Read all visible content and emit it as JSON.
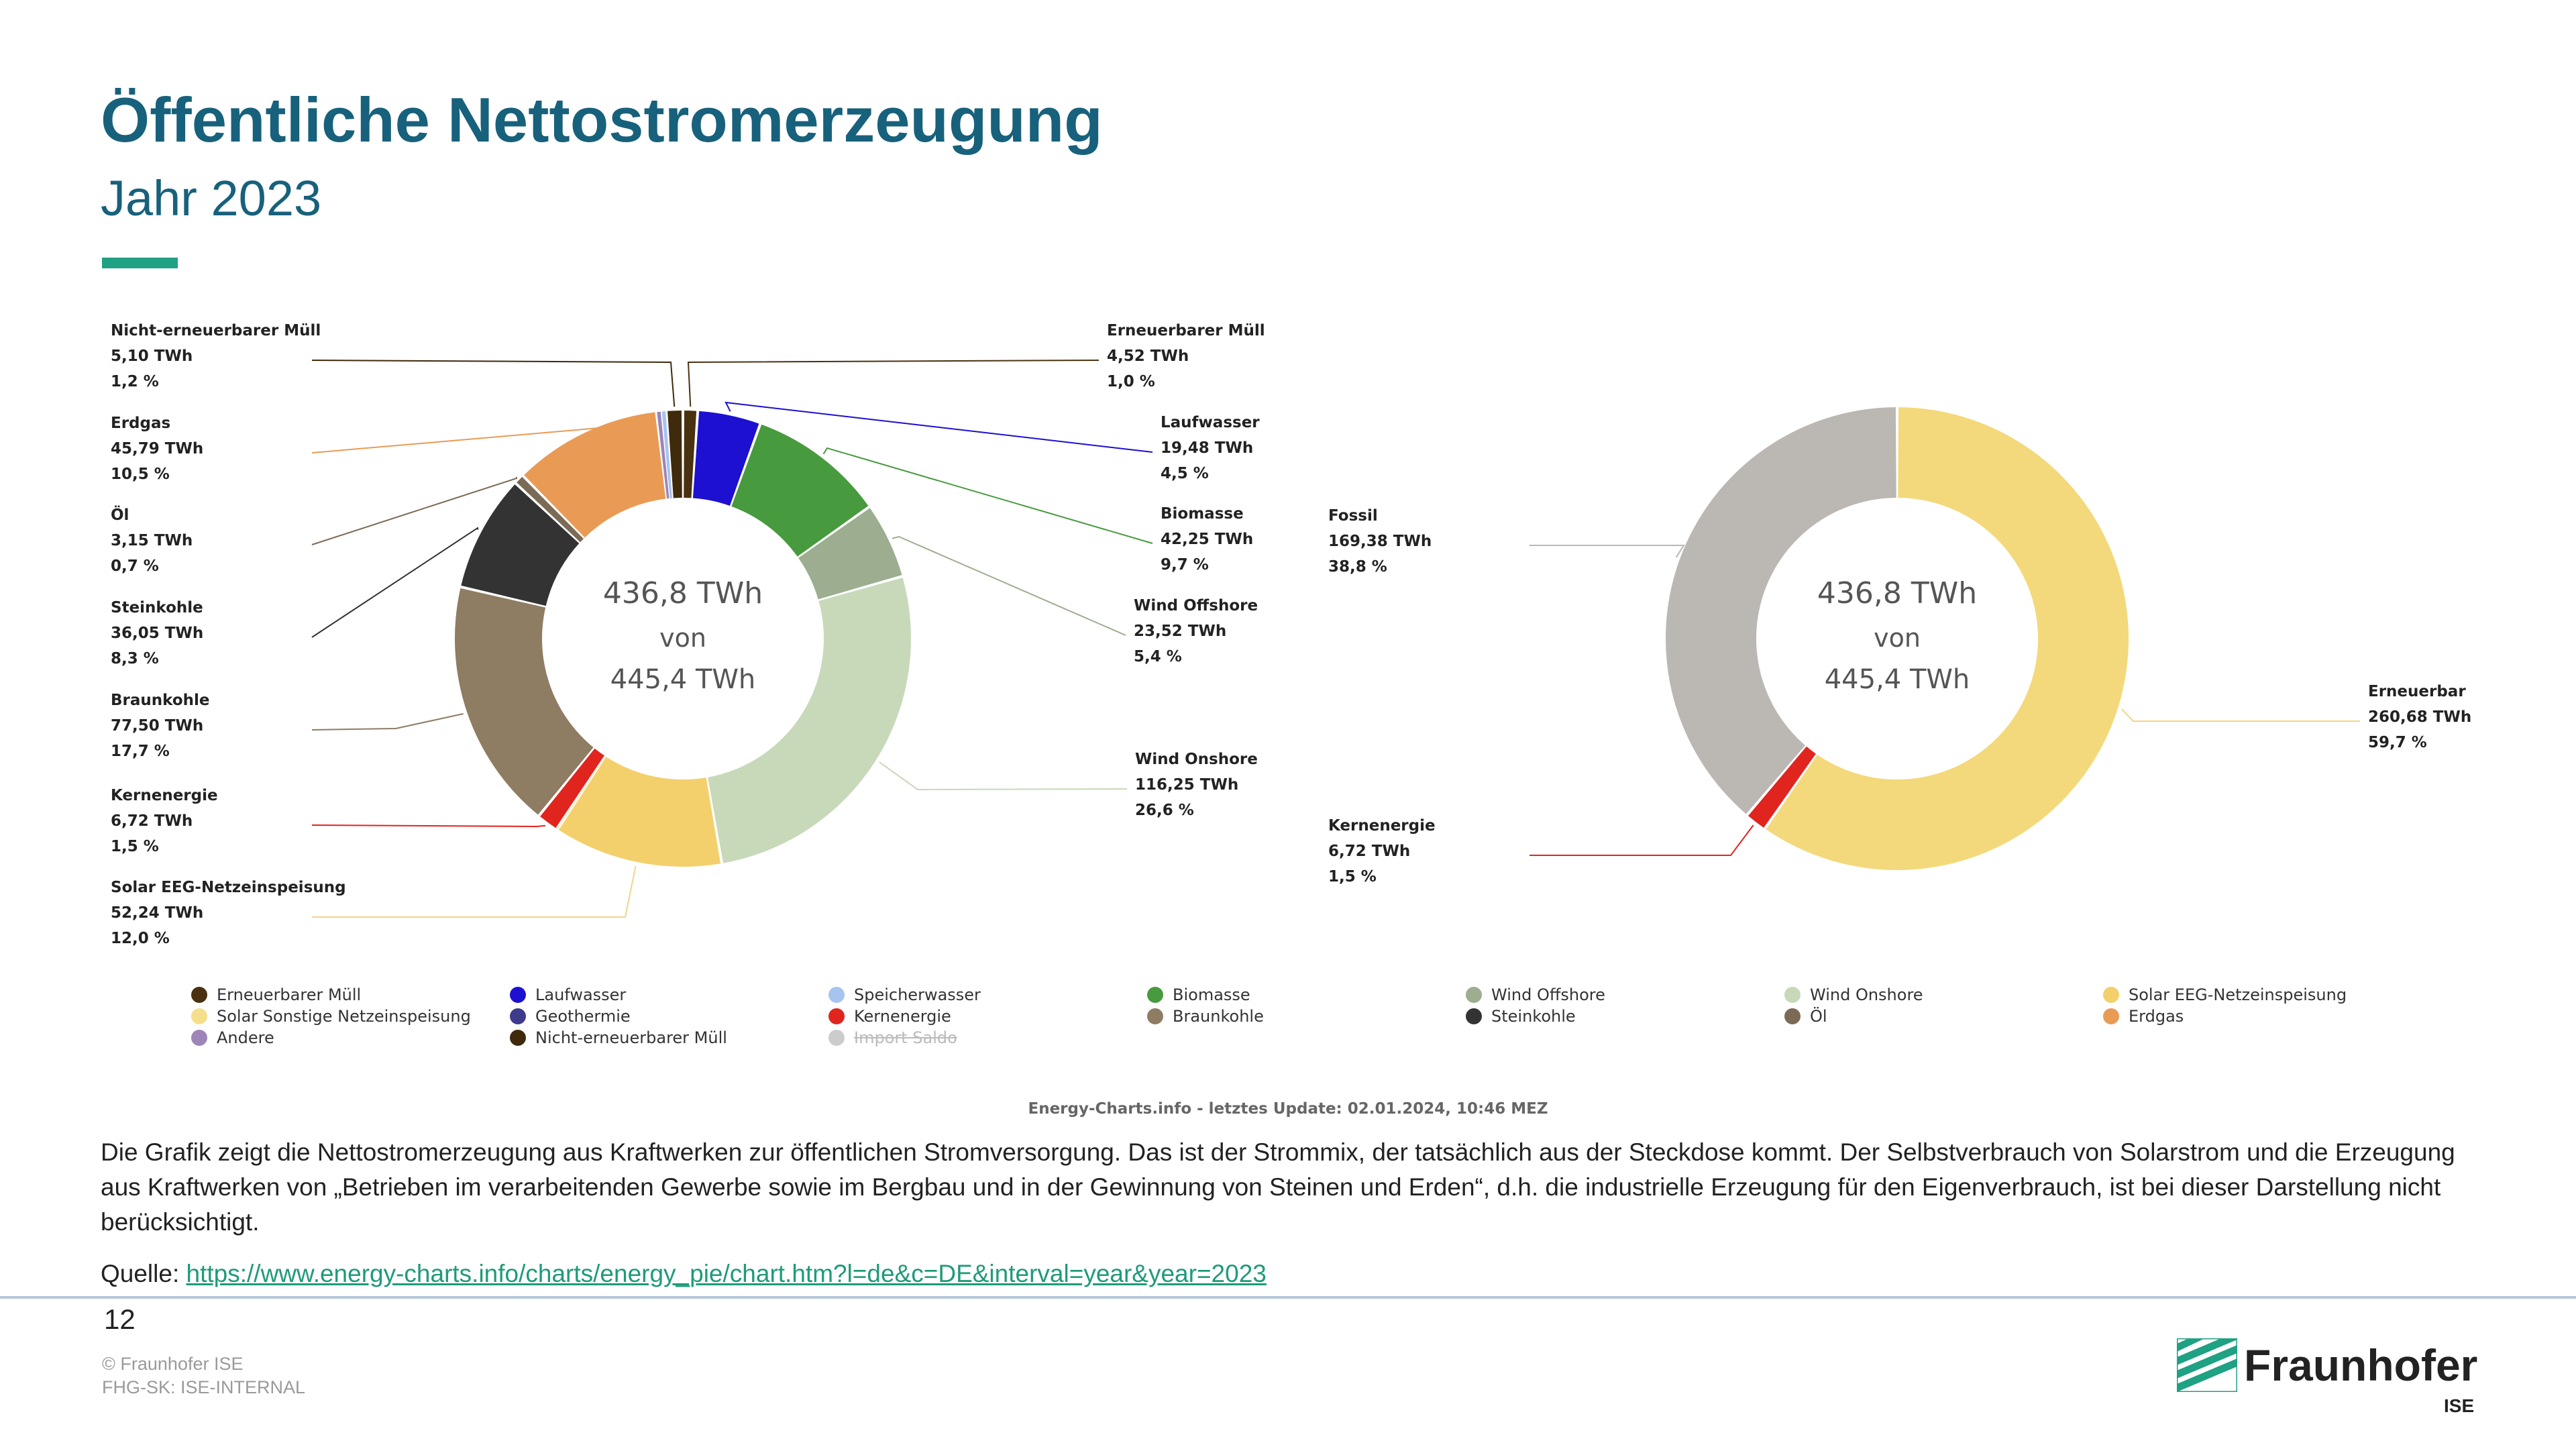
{
  "header": {
    "title": "Öffentliche Nettostromerzeugung",
    "subtitle": "Jahr 2023"
  },
  "chart_data": [
    {
      "type": "pie",
      "center": {
        "line1": "436,8 TWh",
        "line2": "von",
        "line3": "445,4 TWh"
      },
      "slices": [
        {
          "name": "Erneuerbarer Müll",
          "value": 4.52,
          "value_label": "4,52 TWh",
          "percent_label": "1,0 %",
          "color": "#4a3210",
          "labeled": true
        },
        {
          "name": "Laufwasser",
          "value": 19.48,
          "value_label": "19,48 TWh",
          "percent_label": "4,5 %",
          "color": "#1d10d0",
          "labeled": true
        },
        {
          "name": "Biomasse",
          "value": 42.25,
          "value_label": "42,25 TWh",
          "percent_label": "9,7 %",
          "color": "#479a3d",
          "labeled": true
        },
        {
          "name": "Wind Offshore",
          "value": 23.52,
          "value_label": "23,52 TWh",
          "percent_label": "5,4 %",
          "color": "#9cad90",
          "labeled": true
        },
        {
          "name": "Wind Onshore",
          "value": 116.25,
          "value_label": "116,25 TWh",
          "percent_label": "26,6 %",
          "color": "#c7d9b9",
          "labeled": true
        },
        {
          "name": "Solar EEG-Netzeinspeisung",
          "value": 52.24,
          "value_label": "52,24 TWh",
          "percent_label": "12,0 %",
          "color": "#f3d06c",
          "labeled": true
        },
        {
          "name": "Solar Sonstige Netzeinspeisung",
          "value": 0.3,
          "color": "#f5df8c",
          "labeled": false
        },
        {
          "name": "Kernenergie",
          "value": 6.72,
          "value_label": "6,72 TWh",
          "percent_label": "1,5 %",
          "color": "#e0251f",
          "labeled": true
        },
        {
          "name": "Braunkohle",
          "value": 77.5,
          "value_label": "77,50 TWh",
          "percent_label": "17,7 %",
          "color": "#8e7c63",
          "labeled": true
        },
        {
          "name": "Steinkohle",
          "value": 36.05,
          "value_label": "36,05 TWh",
          "percent_label": "8,3 %",
          "color": "#333333",
          "labeled": true
        },
        {
          "name": "Öl",
          "value": 3.15,
          "value_label": "3,15 TWh",
          "percent_label": "0,7 %",
          "color": "#7b6a55",
          "labeled": true
        },
        {
          "name": "Erdgas",
          "value": 45.79,
          "value_label": "45,79 TWh",
          "percent_label": "10,5 %",
          "color": "#e99b55",
          "labeled": true
        },
        {
          "name": "Andere",
          "value": 1.5,
          "color": "#9d85b8",
          "labeled": false
        },
        {
          "name": "Speicherwasser",
          "value": 1.5,
          "color": "#a7c4f0",
          "labeled": false
        },
        {
          "name": "Nicht-erneuerbarer Müll",
          "value": 5.1,
          "value_label": "5,10 TWh",
          "percent_label": "1,2 %",
          "color": "#3f2a0c",
          "labeled": true
        }
      ]
    },
    {
      "type": "pie",
      "center": {
        "line1": "436,8 TWh",
        "line2": "von",
        "line3": "445,4 TWh"
      },
      "slices": [
        {
          "name": "Erneuerbar",
          "value": 260.68,
          "value_label": "260,68 TWh",
          "percent_label": "59,7 %",
          "color": "#f3d97b"
        },
        {
          "name": "Kernenergie",
          "value": 6.72,
          "value_label": "6,72 TWh",
          "percent_label": "1,5 %",
          "color": "#e0251f"
        },
        {
          "name": "Fossil",
          "value": 169.38,
          "value_label": "169,38 TWh",
          "percent_label": "38,8 %",
          "color": "#bbb7b3"
        }
      ]
    }
  ],
  "legend": [
    {
      "label": "Erneuerbarer Müll",
      "color": "#4a3210"
    },
    {
      "label": "Laufwasser",
      "color": "#1d10d0"
    },
    {
      "label": "Speicherwasser",
      "color": "#a7c4f0"
    },
    {
      "label": "Biomasse",
      "color": "#479a3d"
    },
    {
      "label": "Wind Offshore",
      "color": "#9cad90"
    },
    {
      "label": "Wind Onshore",
      "color": "#c7d9b9"
    },
    {
      "label": "Solar EEG-Netzeinspeisung",
      "color": "#f3d06c"
    },
    {
      "label": "Solar Sonstige Netzeinspeisung",
      "color": "#f5df8c"
    },
    {
      "label": "Geothermie",
      "color": "#3e3a8c"
    },
    {
      "label": "Kernenergie",
      "color": "#e0251f"
    },
    {
      "label": "Braunkohle",
      "color": "#8e7c63"
    },
    {
      "label": "Steinkohle",
      "color": "#333333"
    },
    {
      "label": "Öl",
      "color": "#7b6a55"
    },
    {
      "label": "Erdgas",
      "color": "#e99b55"
    },
    {
      "label": "Andere",
      "color": "#9d85b8"
    },
    {
      "label": "Nicht-erneuerbarer Müll",
      "color": "#3f2a0c"
    },
    {
      "label": "Import Saldo",
      "color": "#cccccc",
      "disabled": true
    }
  ],
  "source_line": "Energy-Charts.info - letztes Update: 02.01.2024, 10:46 MEZ",
  "description": "Die Grafik zeigt die Nettostromerzeugung aus Kraftwerken zur öffentlichen Stromversorgung. Das ist der Strommix, der tatsächlich aus der Steckdose kommt. Der Selbstverbrauch von Solarstrom und die Erzeugung aus Kraftwerken von „Betrieben im verarbeitenden Gewerbe sowie im Bergbau und in der Gewinnung von Steinen und Erden“, d.h. die industrielle Erzeugung für den Eigenverbrauch, ist bei dieser Darstellung nicht berücksichtigt.",
  "quelle": {
    "label": "Quelle: ",
    "url": "https://www.energy-charts.info/charts/energy_pie/chart.htm?l=de&c=DE&interval=year&year=2023"
  },
  "footer": {
    "page_number": "12",
    "copyright": "© Fraunhofer ISE",
    "classification": "FHG-SK: ISE-INTERNAL"
  },
  "logo": {
    "name": "Fraunhofer",
    "sub": "ISE"
  }
}
